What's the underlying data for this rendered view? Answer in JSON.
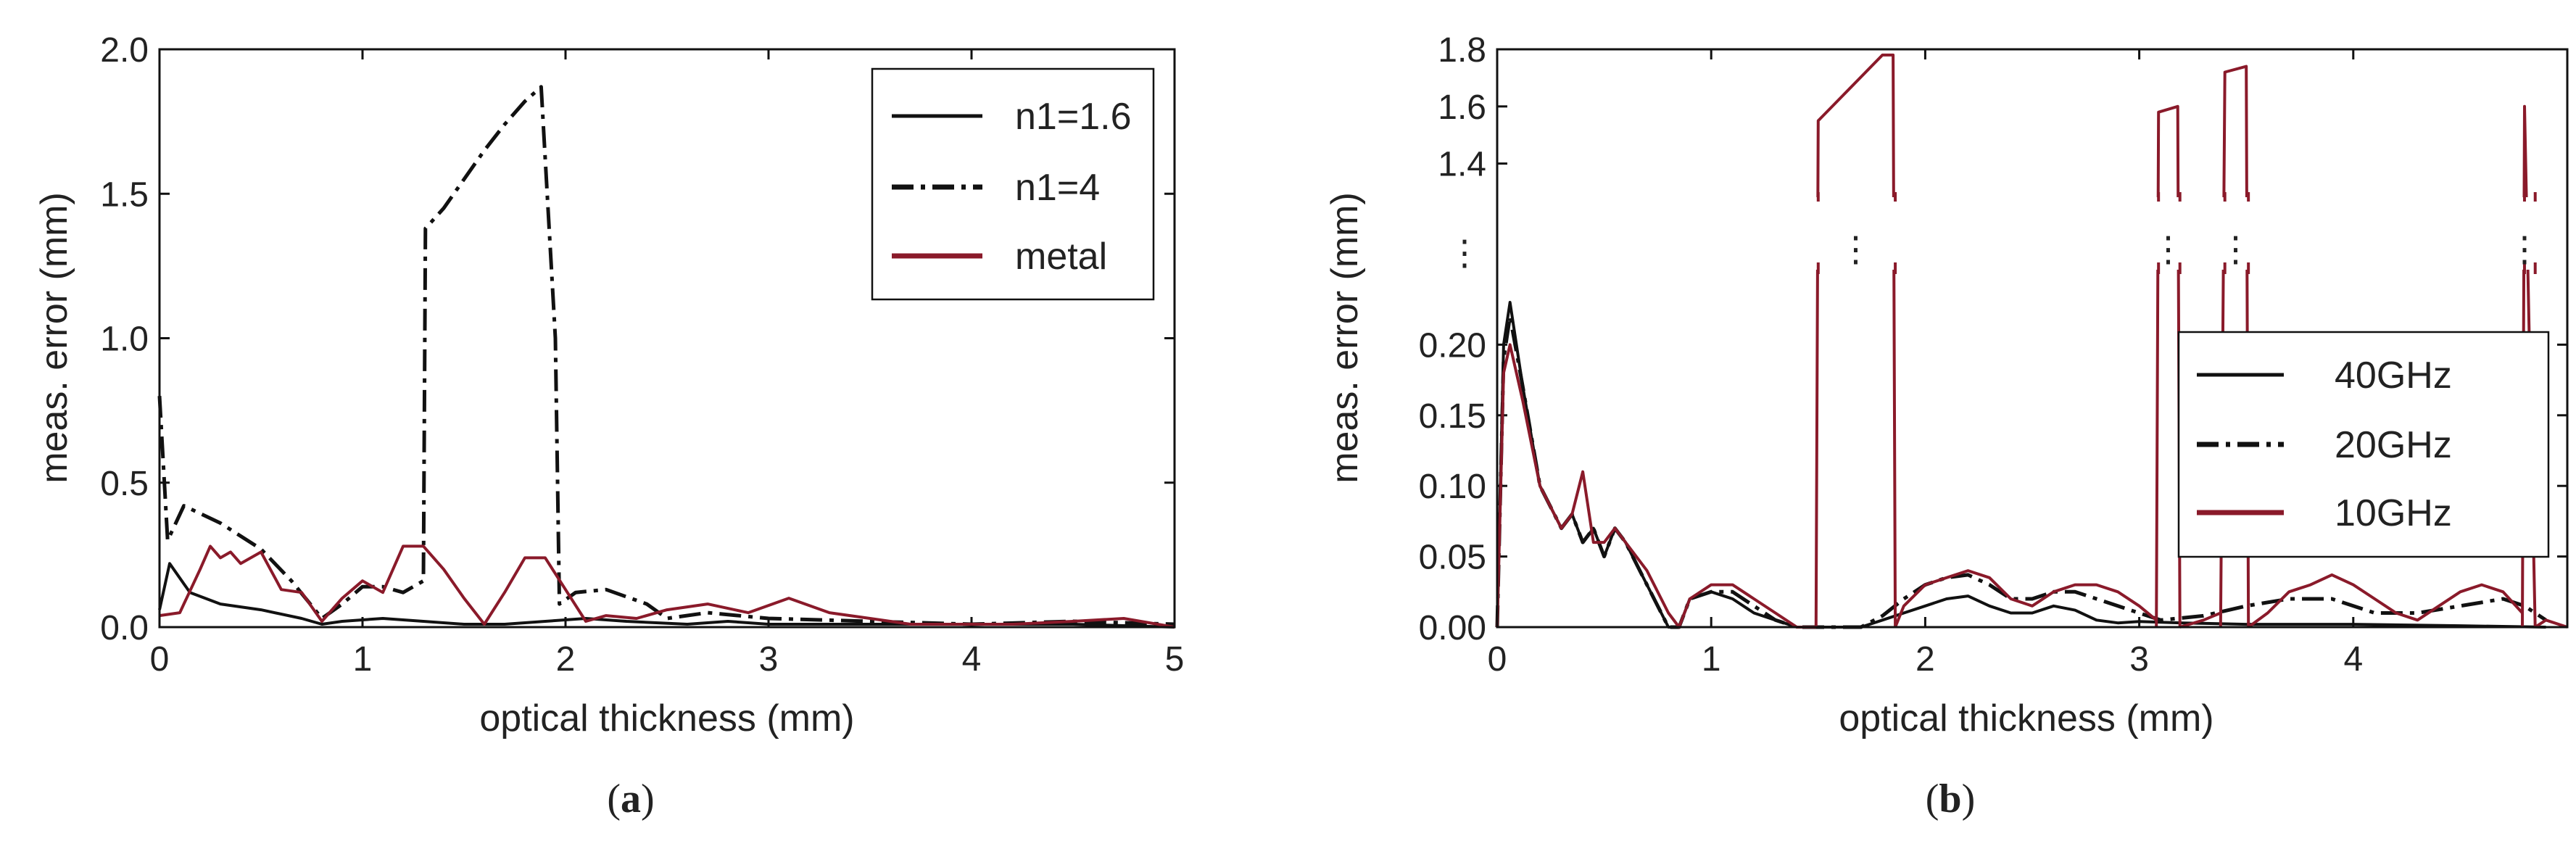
{
  "chart_data": [
    {
      "type": "line",
      "panel": "(a)",
      "panel_letter": "a",
      "xlabel": "optical thickness (mm)",
      "ylabel": "meas. error (mm)",
      "xlim": [
        0,
        5
      ],
      "ylim": [
        0,
        2.0
      ],
      "xticks": [
        "0",
        "1",
        "2",
        "3",
        "4",
        "5"
      ],
      "yticks": [
        "0.0",
        "0.5",
        "1.0",
        "1.5",
        "2.0"
      ],
      "legend_position": "top-right",
      "series": [
        {
          "name": "n1=1.6",
          "color": "#111111",
          "style": "solid",
          "x": [
            0,
            0.05,
            0.15,
            0.3,
            0.5,
            0.7,
            0.8,
            0.9,
            1.1,
            1.3,
            1.5,
            1.7,
            1.9,
            2.1,
            2.3,
            2.6,
            2.8,
            3.0,
            3.5,
            4.0,
            4.5,
            5.0
          ],
          "y": [
            0.06,
            0.22,
            0.12,
            0.08,
            0.06,
            0.03,
            0.01,
            0.02,
            0.03,
            0.02,
            0.01,
            0.01,
            0.02,
            0.03,
            0.02,
            0.01,
            0.02,
            0.01,
            0.01,
            0.01,
            0.01,
            0.0
          ]
        },
        {
          "name": "n1=4",
          "color": "#111111",
          "style": "dashdot",
          "x": [
            0,
            0.04,
            0.12,
            0.3,
            0.5,
            0.65,
            0.8,
            0.9,
            1.0,
            1.1,
            1.2,
            1.3,
            1.31,
            1.4,
            1.5,
            1.6,
            1.7,
            1.8,
            1.88,
            1.95,
            1.97,
            2.05,
            2.2,
            2.4,
            2.5,
            2.7,
            3.0,
            3.5,
            4.0,
            4.5,
            5.0
          ],
          "y": [
            0.8,
            0.3,
            0.42,
            0.36,
            0.27,
            0.16,
            0.03,
            0.08,
            0.14,
            0.14,
            0.12,
            0.16,
            1.38,
            1.45,
            1.55,
            1.65,
            1.74,
            1.82,
            1.87,
            1.0,
            0.08,
            0.12,
            0.13,
            0.08,
            0.03,
            0.05,
            0.03,
            0.02,
            0.01,
            0.02,
            0.01
          ]
        },
        {
          "name": "metal",
          "color": "#8a1a2a",
          "style": "solid",
          "x": [
            0,
            0.1,
            0.2,
            0.25,
            0.3,
            0.35,
            0.4,
            0.5,
            0.6,
            0.7,
            0.8,
            0.9,
            1.0,
            1.1,
            1.2,
            1.3,
            1.4,
            1.5,
            1.6,
            1.7,
            1.8,
            1.9,
            2.0,
            2.1,
            2.2,
            2.35,
            2.5,
            2.7,
            2.9,
            3.1,
            3.3,
            3.5,
            3.7,
            3.9,
            4.2,
            4.5,
            4.75,
            5.0
          ],
          "y": [
            0.04,
            0.05,
            0.2,
            0.28,
            0.24,
            0.26,
            0.22,
            0.26,
            0.13,
            0.12,
            0.02,
            0.1,
            0.16,
            0.12,
            0.28,
            0.28,
            0.2,
            0.1,
            0.01,
            0.12,
            0.24,
            0.24,
            0.13,
            0.02,
            0.04,
            0.03,
            0.06,
            0.08,
            0.05,
            0.1,
            0.05,
            0.03,
            0.01,
            0.01,
            0.01,
            0.02,
            0.03,
            0.0
          ]
        }
      ]
    },
    {
      "type": "line",
      "panel": "(b)",
      "panel_letter": "b",
      "xlabel": "optical thickness (mm)",
      "ylabel": "meas. error (mm)",
      "xlim": [
        0,
        5
      ],
      "ylim": [
        0,
        0.25
      ],
      "broken_axis": true,
      "upper_ylim": [
        1.3,
        1.8
      ],
      "xticks": [
        "0",
        "1",
        "2",
        "3",
        "4"
      ],
      "yticks_lower": [
        "0.00",
        "0.05",
        "0.10",
        "0.15",
        "0.20"
      ],
      "yticks_upper": [
        "1.4",
        "1.6",
        "1.8"
      ],
      "break_marker": "⋮",
      "legend_position": "center-right",
      "series": [
        {
          "name": "40GHz",
          "color": "#111111",
          "style": "solid",
          "x": [
            0,
            0.03,
            0.06,
            0.12,
            0.2,
            0.3,
            0.35,
            0.4,
            0.45,
            0.5,
            0.55,
            0.6,
            0.7,
            0.8,
            0.85,
            0.9,
            1.0,
            1.1,
            1.2,
            1.3,
            1.4,
            1.5,
            1.6,
            1.7,
            1.8,
            1.9,
            2.0,
            2.1,
            2.2,
            2.3,
            2.4,
            2.5,
            2.6,
            2.7,
            2.8,
            2.9,
            3.0,
            3.2,
            3.5,
            4.0,
            4.5,
            4.9
          ],
          "y": [
            0.0,
            0.2,
            0.23,
            0.17,
            0.1,
            0.07,
            0.08,
            0.06,
            0.07,
            0.05,
            0.07,
            0.06,
            0.03,
            0.0,
            0.0,
            0.02,
            0.025,
            0.02,
            0.01,
            0.005,
            0.0,
            0.0,
            0.0,
            0.0,
            0.005,
            0.01,
            0.015,
            0.02,
            0.022,
            0.015,
            0.01,
            0.01,
            0.015,
            0.012,
            0.005,
            0.003,
            0.004,
            0.003,
            0.002,
            0.002,
            0.001,
            0.0
          ]
        },
        {
          "name": "20GHz",
          "color": "#111111",
          "style": "dashdot",
          "x": [
            0,
            0.03,
            0.06,
            0.12,
            0.2,
            0.3,
            0.35,
            0.4,
            0.45,
            0.5,
            0.55,
            0.6,
            0.7,
            0.8,
            0.85,
            0.9,
            1.0,
            1.1,
            1.2,
            1.3,
            1.4,
            1.5,
            1.6,
            1.7,
            1.8,
            1.9,
            2.0,
            2.1,
            2.2,
            2.3,
            2.4,
            2.5,
            2.6,
            2.7,
            2.8,
            2.9,
            3.0,
            3.1,
            3.3,
            3.5,
            3.7,
            3.9,
            4.1,
            4.3,
            4.5,
            4.7,
            4.8,
            4.9
          ],
          "y": [
            0.0,
            0.19,
            0.22,
            0.17,
            0.1,
            0.07,
            0.08,
            0.06,
            0.07,
            0.05,
            0.07,
            0.06,
            0.03,
            0.0,
            0.0,
            0.02,
            0.025,
            0.025,
            0.015,
            0.005,
            0.0,
            0.0,
            0.0,
            0.0,
            0.008,
            0.02,
            0.03,
            0.035,
            0.037,
            0.03,
            0.02,
            0.02,
            0.025,
            0.025,
            0.02,
            0.015,
            0.01,
            0.005,
            0.008,
            0.015,
            0.02,
            0.02,
            0.01,
            0.01,
            0.015,
            0.02,
            0.015,
            0.005
          ]
        },
        {
          "name": "10GHz",
          "color": "#8a1a2a",
          "style": "solid",
          "segments": [
            {
              "x": [
                0,
                0.03,
                0.06,
                0.12,
                0.2,
                0.3,
                0.35,
                0.4,
                0.45,
                0.5,
                0.55,
                0.6,
                0.7,
                0.8,
                0.85,
                0.9,
                1.0,
                1.1,
                1.2,
                1.3,
                1.4,
                1.49
              ],
              "y": [
                0.0,
                0.18,
                0.2,
                0.16,
                0.1,
                0.07,
                0.08,
                0.11,
                0.06,
                0.06,
                0.07,
                0.06,
                0.04,
                0.01,
                0.0,
                0.02,
                0.03,
                0.03,
                0.02,
                0.01,
                0.0,
                0.0
              ]
            },
            {
              "x": [
                1.49,
                1.5,
                1.8,
                1.85,
                1.86
              ],
              "y": [
                0.0,
                1.55,
                1.78,
                1.78,
                0.0
              ]
            },
            {
              "x": [
                1.86,
                1.9,
                2.0,
                2.1,
                2.2,
                2.3,
                2.4,
                2.5,
                2.6,
                2.7,
                2.8,
                2.9,
                3.0,
                3.08
              ],
              "y": [
                0.0,
                0.015,
                0.03,
                0.035,
                0.04,
                0.035,
                0.02,
                0.015,
                0.025,
                0.03,
                0.03,
                0.025,
                0.015,
                0.005
              ]
            },
            {
              "x": [
                3.08,
                3.09,
                3.18,
                3.19
              ],
              "y": [
                0.0,
                1.58,
                1.6,
                0.0
              ]
            },
            {
              "x": [
                3.19,
                3.3,
                3.38
              ],
              "y": [
                0.0,
                0.005,
                0.01
              ]
            },
            {
              "x": [
                3.38,
                3.4,
                3.5,
                3.51
              ],
              "y": [
                0.0,
                1.72,
                1.74,
                0.0
              ]
            },
            {
              "x": [
                3.51,
                3.6,
                3.7,
                3.8,
                3.9,
                4.0,
                4.1,
                4.2,
                4.3,
                4.4,
                4.5,
                4.6,
                4.7,
                4.79
              ],
              "y": [
                0.0,
                0.01,
                0.025,
                0.03,
                0.037,
                0.03,
                0.02,
                0.01,
                0.005,
                0.015,
                0.025,
                0.03,
                0.025,
                0.01
              ]
            },
            {
              "x": [
                4.79,
                4.8,
                4.85
              ],
              "y": [
                0.0,
                1.6,
                0.0
              ]
            },
            {
              "x": [
                4.85,
                4.9,
                5.0
              ],
              "y": [
                0.0,
                0.005,
                0.0
              ]
            }
          ]
        }
      ]
    }
  ]
}
